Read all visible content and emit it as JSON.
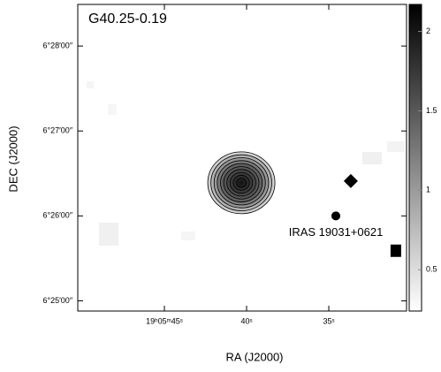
{
  "chart_data": {
    "type": "image",
    "title": "G40.25-0.19",
    "xlabel": "RA (J2000)",
    "ylabel": "DEC (J2000)",
    "xlim": [
      50.27,
      30.27
    ],
    "xticks": [
      {
        "value": 45,
        "label": "19ʰ05ᵐ45ˢ"
      },
      {
        "value": 40,
        "label": "40ˢ"
      },
      {
        "value": 35,
        "label": "35ˢ"
      }
    ],
    "ylim": [
      24.88,
      28.49
    ],
    "yticks": [
      {
        "value": 28,
        "label": "6°28′00″"
      },
      {
        "value": 27,
        "label": "6°27′00″"
      },
      {
        "value": 26,
        "label": "6°26′00″"
      },
      {
        "value": 25,
        "label": "6°25′00″"
      }
    ],
    "colorbar_lim": [
      0.24,
      2.17
    ],
    "colorbar_ticks": [
      2,
      1.5,
      1,
      0.5
    ],
    "emission": {
      "x": 40.32,
      "y": 26.39,
      "peak": 2.1
    },
    "markers": [
      {
        "shape": "diamond",
        "x": 33.66,
        "y": 26.41
      },
      {
        "shape": "circle",
        "x": 34.57,
        "y": 26.0
      },
      {
        "shape": "square",
        "x": 30.92,
        "y": 25.59
      }
    ],
    "annotation": "IRAS 19031+0621"
  }
}
